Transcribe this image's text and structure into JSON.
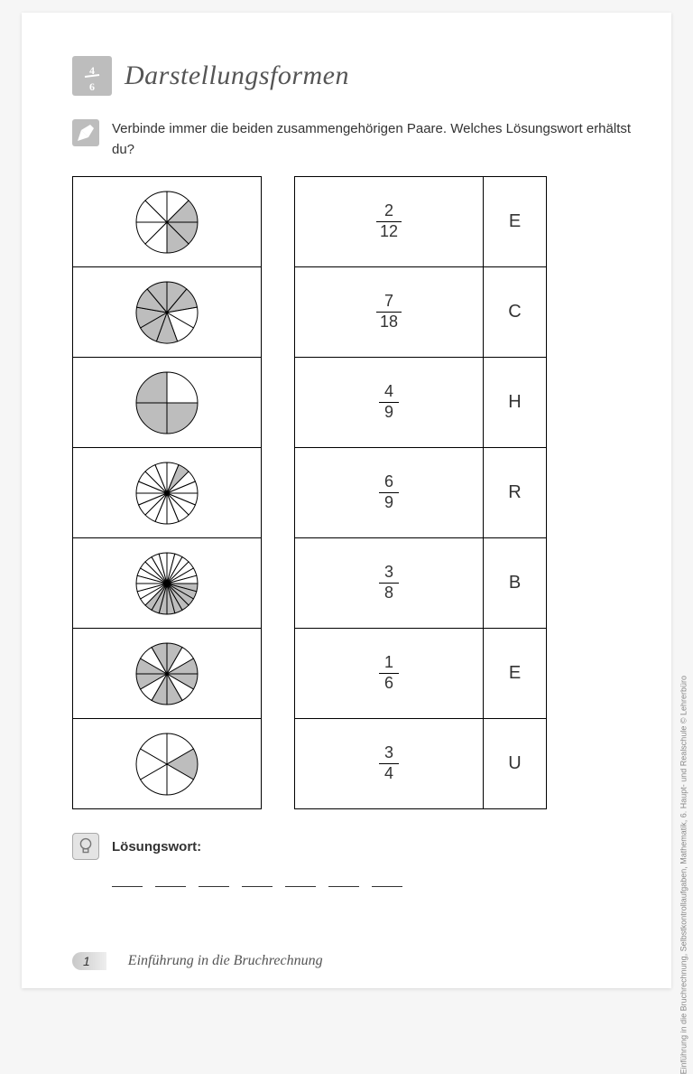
{
  "title": "Darstellungsformen",
  "task_text": "Verbinde immer die beiden zusammengehörigen Paare. Welches Lösungswort erhältst du?",
  "solution_label": "Lösungswort:",
  "footer": {
    "page_num": "1",
    "title": "Einführung in die Bruchrechnung"
  },
  "side_text": "Einführung in die Bruchrechnung, Selbstkontrollaufgaben, Mathematik, 6. Haupt- und Realschule © Lehrerbüro",
  "pie_style": {
    "radius": 34,
    "stroke": "#000000",
    "stroke_width": 1,
    "fill_unshaded": "#ffffff",
    "fill_shaded": "#bdbdbd"
  },
  "pies": [
    {
      "segments": 8,
      "shaded": [
        1,
        2,
        3
      ]
    },
    {
      "segments": 9,
      "shaded": [
        0,
        1,
        4,
        5,
        6,
        7,
        8
      ]
    },
    {
      "segments": 4,
      "shaded": [
        1,
        2,
        3
      ]
    },
    {
      "segments": 16,
      "shaded": [
        1
      ]
    },
    {
      "segments": 24,
      "shaded": [
        6,
        7,
        8,
        9,
        10,
        11,
        12,
        13,
        14
      ]
    },
    {
      "segments": 12,
      "shaded": [
        2,
        3,
        5,
        6,
        8,
        9,
        11,
        0
      ]
    },
    {
      "segments": 6,
      "shaded": [
        1
      ]
    }
  ],
  "rows": [
    {
      "num": "2",
      "den": "12",
      "letter": "E"
    },
    {
      "num": "7",
      "den": "18",
      "letter": "C"
    },
    {
      "num": "4",
      "den": "9",
      "letter": "H"
    },
    {
      "num": "6",
      "den": "9",
      "letter": "R"
    },
    {
      "num": "3",
      "den": "8",
      "letter": "B"
    },
    {
      "num": "1",
      "den": "6",
      "letter": "E"
    },
    {
      "num": "3",
      "den": "4",
      "letter": "U"
    }
  ],
  "blank_count": 7
}
